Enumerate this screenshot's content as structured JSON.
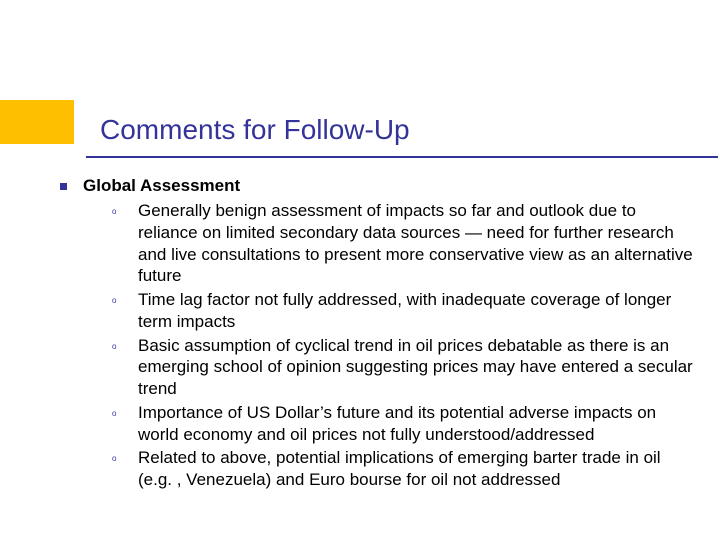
{
  "slide": {
    "title": "Comments for Follow-Up",
    "section_heading": "Global Assessment",
    "accent_color": "#febf01",
    "title_color": "#333399",
    "bullet_color": "#333399",
    "text_color": "#000000",
    "background_color": "#ffffff",
    "title_fontsize": 28,
    "body_fontsize": 17,
    "sub_bullet_marker": "o",
    "items": [
      "Generally benign assessment of impacts so far and outlook due to reliance on limited secondary data sources — need for further research and live consultations to present more conservative view as an alternative future",
      "Time lag factor not fully addressed, with inadequate coverage of longer term impacts",
      "Basic assumption of cyclical trend in oil prices debatable as there is an emerging school of opinion suggesting prices may have entered a secular trend",
      "Importance of US Dollar’s future and its potential adverse impacts on world economy and oil prices not fully understood/addressed",
      "Related to above, potential implications of emerging barter trade in oil (e.g. , Venezuela) and Euro bourse for oil not addressed"
    ]
  }
}
